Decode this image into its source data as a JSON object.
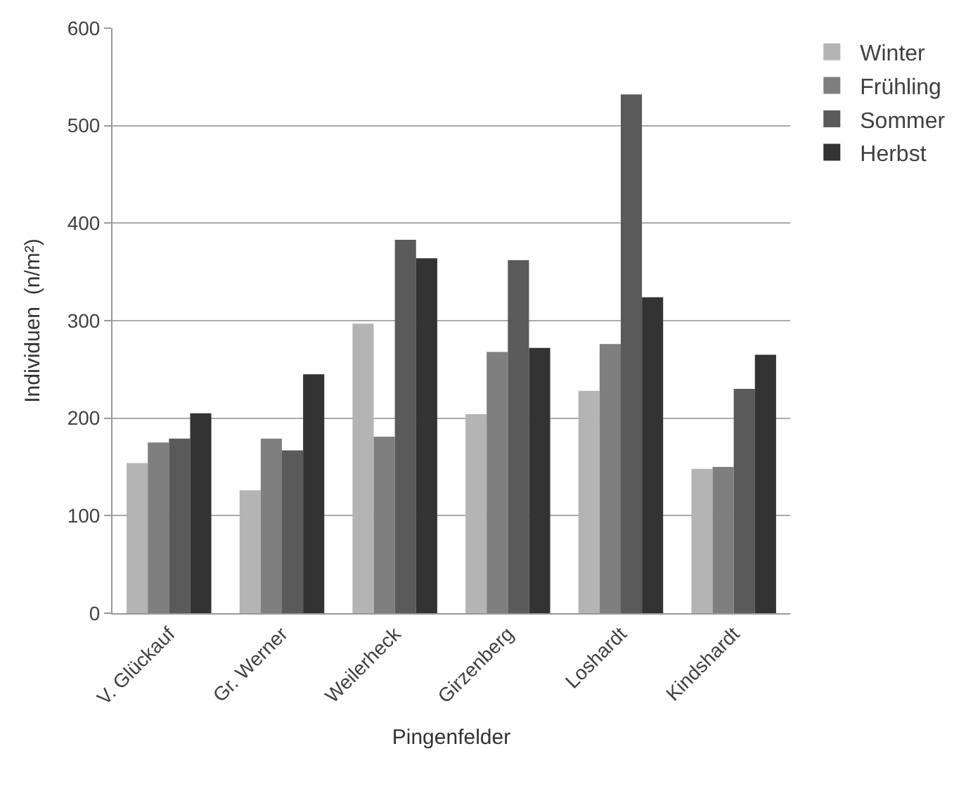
{
  "chart_data": {
    "type": "bar",
    "xlabel": "Pingenfelder",
    "ylabel": "Individuen  (n/m²)",
    "categories": [
      "V. Glückauf",
      "Gr. Werner",
      "Weilerheck",
      "Girzenberg",
      "Loshardt",
      "Kindshardt"
    ],
    "series": [
      {
        "name": "Winter",
        "color": "#b4b4b4",
        "values": [
          154,
          126,
          297,
          204,
          228,
          148
        ]
      },
      {
        "name": "Frühling",
        "color": "#7f7f7f",
        "values": [
          175,
          179,
          181,
          268,
          276,
          150
        ]
      },
      {
        "name": "Sommer",
        "color": "#5a5a5a",
        "values": [
          179,
          167,
          383,
          362,
          532,
          230
        ]
      },
      {
        "name": "Herbst",
        "color": "#333333",
        "values": [
          205,
          245,
          364,
          272,
          324,
          265
        ]
      }
    ],
    "ylim": [
      0,
      600
    ],
    "yticks": [
      0,
      100,
      200,
      300,
      400,
      500,
      600
    ],
    "grid": "y",
    "legend": "top right"
  }
}
